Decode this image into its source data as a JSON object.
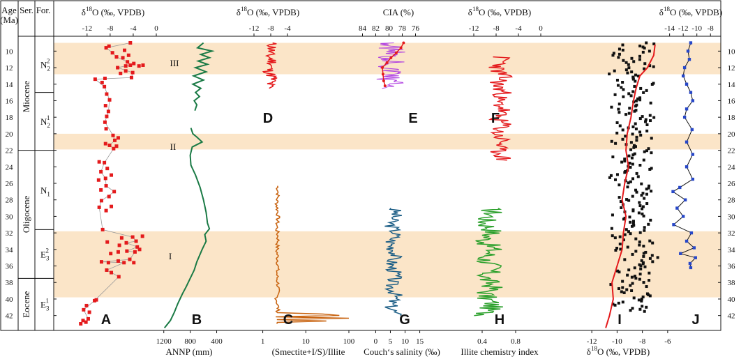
{
  "header": {
    "age_label": "Age",
    "age_unit": "(Ma)",
    "series_label": "Ser.",
    "formation_label": "For."
  },
  "stratigraphy": {
    "series": [
      "Miocene",
      "Oligocene",
      "Eocene"
    ],
    "formations": [
      {
        "base": "N",
        "sub": "2",
        "sup": "2"
      },
      {
        "base": "N",
        "sub": "2",
        "sup": "1"
      },
      {
        "base": "N",
        "sub": "1",
        "sup": ""
      },
      {
        "base": "E",
        "sub": "3",
        "sup": "2"
      },
      {
        "base": "E",
        "sub": "3",
        "sup": "1"
      }
    ]
  },
  "bands": [
    {
      "label": "III",
      "from": 9.0,
      "to": 12.8
    },
    {
      "label": "II",
      "from": 20.0,
      "to": 21.9
    },
    {
      "label": "I",
      "from": 31.8,
      "to": 39.8
    }
  ],
  "colors": {
    "band": "#fbe5c8",
    "red": "#e41a1c",
    "green_dark": "#1a7a45",
    "brown": "#c8620e",
    "violet": "#b040e0",
    "teal": "#1c5e86",
    "green": "#2ca02c",
    "blue": "#2747c8",
    "black": "#111111"
  },
  "chart_data": [
    {
      "panel": "A",
      "type": "scatter",
      "xlabel_top": "δ18O (‰, VPDB)",
      "top_ticks": [
        "-12",
        "-8",
        "-4",
        "0"
      ],
      "top_tick_values": [
        -12,
        -8,
        -4,
        0
      ],
      "xlim": [
        -15,
        0
      ],
      "points": [
        [
          -13.1,
          43
        ],
        [
          -12.7,
          42.6
        ],
        [
          -12.2,
          42.8
        ],
        [
          -11.8,
          42.4
        ],
        [
          -12.6,
          41.3
        ],
        [
          -11.6,
          41.6
        ],
        [
          -12.1,
          40.8
        ],
        [
          -10.4,
          40.1
        ],
        [
          -10.7,
          40.2
        ],
        [
          -6.5,
          37.3
        ],
        [
          -7.8,
          36.8
        ],
        [
          -8.6,
          36.5
        ],
        [
          -9.5,
          35.5
        ],
        [
          -8.3,
          35.6
        ],
        [
          -6.6,
          35.4
        ],
        [
          -5.6,
          35.6
        ],
        [
          -4.6,
          35.2
        ],
        [
          -3.9,
          35.6
        ],
        [
          -7.9,
          34.5
        ],
        [
          -6.6,
          34.3
        ],
        [
          -5.1,
          34.2
        ],
        [
          -3.7,
          34.3
        ],
        [
          -2.9,
          34.0
        ],
        [
          -3.3,
          33.7
        ],
        [
          -6.4,
          33.5
        ],
        [
          -5.2,
          33.2
        ],
        [
          -8.5,
          33.1
        ],
        [
          -6.0,
          32.6
        ],
        [
          -4.1,
          32.5
        ],
        [
          -3.5,
          33.0
        ],
        [
          -2.4,
          32.4
        ],
        [
          -9.3,
          31.6
        ],
        [
          -8.7,
          29.3
        ],
        [
          -9.9,
          28.9
        ],
        [
          -7.8,
          28.8
        ],
        [
          -9.5,
          28.1
        ],
        [
          -8.2,
          27.6
        ],
        [
          -7.3,
          27.0
        ],
        [
          -9.6,
          26.8
        ],
        [
          -8.7,
          26.3
        ],
        [
          -10.0,
          25.6
        ],
        [
          -8.8,
          25.4
        ],
        [
          -7.8,
          25.0
        ],
        [
          -9.6,
          24.6
        ],
        [
          -8.5,
          24.2
        ],
        [
          -9.0,
          23.5
        ],
        [
          -9.9,
          23.4
        ],
        [
          -7.4,
          21.8
        ],
        [
          -6.9,
          21.5
        ],
        [
          -8.1,
          21.4
        ],
        [
          -8.8,
          21.2
        ],
        [
          -7.2,
          20.8
        ],
        [
          -6.6,
          20.5
        ],
        [
          -7.5,
          20.2
        ],
        [
          -8.7,
          19.4
        ],
        [
          -8.9,
          18.6
        ],
        [
          -8.6,
          17.9
        ],
        [
          -8.3,
          17.3
        ],
        [
          -8.8,
          16.6
        ],
        [
          -8.1,
          15.9
        ],
        [
          -8.6,
          15.2
        ],
        [
          -9.0,
          14.3
        ],
        [
          -9.4,
          13.8
        ],
        [
          -8.9,
          13.3
        ],
        [
          -10.6,
          13.4
        ],
        [
          -4.3,
          13.2
        ],
        [
          -6.2,
          12.7
        ],
        [
          -5.3,
          12.4
        ],
        [
          -4.1,
          12.6
        ],
        [
          -6.7,
          12.0
        ],
        [
          -5.3,
          11.8
        ],
        [
          -4.5,
          11.7
        ],
        [
          -3.9,
          11.5
        ],
        [
          -3.0,
          11.8
        ],
        [
          -2.3,
          11.7
        ],
        [
          -5.0,
          11.3
        ],
        [
          -5.8,
          10.8
        ],
        [
          -4.8,
          10.5
        ],
        [
          -6.9,
          10.7
        ],
        [
          -7.6,
          10.2
        ],
        [
          -5.5,
          9.9
        ],
        [
          -8.7,
          9.6
        ],
        [
          -8.2,
          9.4
        ],
        [
          -4.5,
          9.0
        ]
      ],
      "trend_color": "#9a9a9a"
    },
    {
      "panel": "B",
      "type": "line",
      "xlabel": "ANNP (mm)",
      "bottom_ticks": [
        "1200",
        "800",
        "400"
      ],
      "bottom_tick_values": [
        1200,
        800,
        400
      ],
      "xlim": [
        1250,
        300
      ],
      "segments": [
        [
          [
            600,
            9.0
          ],
          [
            690,
            9.6
          ],
          [
            470,
            10.0
          ],
          [
            640,
            10.4
          ],
          [
            510,
            10.8
          ],
          [
            680,
            11.2
          ],
          [
            540,
            11.6
          ],
          [
            720,
            12.0
          ],
          [
            560,
            12.5
          ],
          [
            750,
            13.0
          ],
          [
            600,
            13.5
          ],
          [
            760,
            14.0
          ],
          [
            640,
            14.5
          ],
          [
            720,
            15.0
          ],
          [
            660,
            15.5
          ],
          [
            740,
            16.0
          ],
          [
            700,
            16.5
          ],
          [
            730,
            17.2
          ]
        ],
        [
          [
            790,
            19.3
          ],
          [
            760,
            20.0
          ],
          [
            700,
            20.4
          ],
          [
            620,
            21.0
          ],
          [
            770,
            21.6
          ],
          [
            800,
            22.6
          ],
          [
            790,
            23.8
          ],
          [
            720,
            25.0
          ],
          [
            650,
            26.5
          ],
          [
            600,
            28.0
          ],
          [
            560,
            29.5
          ],
          [
            540,
            30.8
          ],
          [
            510,
            31.5
          ],
          [
            580,
            32.2
          ],
          [
            560,
            33.0
          ],
          [
            620,
            34.0
          ],
          [
            700,
            35.5
          ],
          [
            740,
            36.5
          ],
          [
            800,
            37.5
          ],
          [
            860,
            38.5
          ],
          [
            920,
            39.4
          ],
          [
            990,
            40.6
          ],
          [
            1040,
            41.6
          ],
          [
            1100,
            42.6
          ],
          [
            1190,
            43.5
          ]
        ]
      ]
    },
    {
      "panel": "C",
      "type": "line",
      "xlabel": "(Smectite+I/S)/Illite",
      "xscale": "log",
      "bottom_ticks": [
        "1",
        "10",
        "100"
      ],
      "bottom_tick_values": [
        1,
        10,
        100
      ],
      "xlim": [
        0.5,
        100
      ],
      "ystart": 26.3,
      "yend": 43.0,
      "count": 100,
      "seed": 7,
      "base": 2.2,
      "amp": 0.45,
      "spikes": [
        [
          42.0,
          60
        ],
        [
          42.3,
          100
        ],
        [
          41.9,
          25
        ],
        [
          42.6,
          30
        ]
      ]
    },
    {
      "panel": "D",
      "type": "line",
      "xlabel_top": "δ18O (‰, VPDB)",
      "top_ticks": [
        "-12",
        "-8",
        "-4"
      ],
      "top_tick_values": [
        -12,
        -8,
        -4
      ],
      "xlim": [
        -14,
        -2
      ],
      "ystart": 9.0,
      "yend": 14.5,
      "count": 50,
      "seed": 11,
      "base": -8.0,
      "amp": 3.0
    },
    {
      "panel": "E",
      "type": "line",
      "xlabel_top": "CIA (%)",
      "top_ticks": [
        "84",
        "82",
        "80",
        "78",
        "76"
      ],
      "top_tick_values": [
        84,
        82,
        80,
        78,
        76
      ],
      "xlim": [
        85,
        75
      ],
      "ystart": 9.0,
      "yend": 14.5,
      "count": 70,
      "seed": 5,
      "base": 79.6,
      "amp": 3.8,
      "trend": [
        [
          77.8,
          9.0
        ],
        [
          78.2,
          9.6
        ],
        [
          78.9,
          10.2
        ],
        [
          79.7,
          10.8
        ],
        [
          80.3,
          11.4
        ],
        [
          81.0,
          12.0
        ],
        [
          80.9,
          12.8
        ],
        [
          80.8,
          13.6
        ],
        [
          80.6,
          14.2
        ]
      ]
    },
    {
      "panel": "F",
      "type": "line",
      "xlabel_top": "δ18O (‰, VPDB)",
      "top_ticks": [
        "-12",
        "-8",
        "-4",
        "0"
      ],
      "top_tick_values": [
        -12,
        -8,
        -4,
        0
      ],
      "xlim": [
        -15,
        0
      ],
      "ystart": 10.7,
      "yend": 23.2,
      "count": 110,
      "seed": 23,
      "base": -7.3,
      "amp": 3.4
    },
    {
      "panel": "G",
      "type": "line",
      "xlabel": "Couch‘s salinity (‰)",
      "bottom_ticks": [
        "0",
        "5",
        "10",
        "15"
      ],
      "bottom_tick_values": [
        0,
        5,
        10,
        15
      ],
      "xlim": [
        -2,
        17
      ],
      "ystart": 29.0,
      "yend": 42.0,
      "count": 90,
      "seed": 3,
      "base": 6.0,
      "amp": 5.0
    },
    {
      "panel": "H",
      "type": "line",
      "xlabel": "Illite chemistry index",
      "bottom_ticks": [
        "0.4",
        "0.8"
      ],
      "bottom_tick_values": [
        0.4,
        0.8
      ],
      "xlim": [
        0.1,
        1.1
      ],
      "ystart": 29.0,
      "yend": 42.0,
      "count": 100,
      "seed": 17,
      "base": 0.48,
      "amp": 0.28
    },
    {
      "panel": "I",
      "type": "scatter",
      "xlabel": "δ18O (‰, VPDB)",
      "bottom_ticks": [
        "-12",
        "-10",
        "-8",
        "-6"
      ],
      "bottom_tick_values": [
        -12,
        -10,
        -8,
        -6
      ],
      "xlim": [
        -13,
        -5
      ],
      "ystart": 9.0,
      "yend": 41.5,
      "count": 260,
      "seed": 41,
      "base": -8.8,
      "amp": 3.2,
      "trend": [
        [
          -7.0,
          9.2
        ],
        [
          -7.1,
          10.5
        ],
        [
          -7.6,
          12.0
        ],
        [
          -8.2,
          13.0
        ],
        [
          -8.5,
          14.5
        ],
        [
          -8.7,
          16.0
        ],
        [
          -8.9,
          18.0
        ],
        [
          -9.2,
          20.0
        ],
        [
          -9.3,
          22.0
        ],
        [
          -9.1,
          24.0
        ],
        [
          -9.4,
          26.0
        ],
        [
          -9.6,
          28.0
        ],
        [
          -9.3,
          30.0
        ],
        [
          -9.5,
          32.0
        ],
        [
          -9.6,
          34.0
        ],
        [
          -10.0,
          36.0
        ],
        [
          -10.4,
          38.0
        ],
        [
          -10.3,
          40.0
        ],
        [
          -10.6,
          42.0
        ],
        [
          -10.9,
          43.5
        ]
      ]
    },
    {
      "panel": "J",
      "type": "line",
      "xlabel_top": "δ18O (‰, VPDB)",
      "top_ticks": [
        "-14",
        "-12",
        "-10",
        "-8"
      ],
      "top_tick_values": [
        -14,
        -12,
        -10,
        -8
      ],
      "xlim": [
        -15.5,
        -7
      ],
      "points": [
        [
          -10.9,
          9.0
        ],
        [
          -11.3,
          10.0
        ],
        [
          -11.1,
          11.0
        ],
        [
          -11.8,
          12.0
        ],
        [
          -12.0,
          13.0
        ],
        [
          -11.5,
          14.0
        ],
        [
          -10.9,
          15.0
        ],
        [
          -10.6,
          16.0
        ],
        [
          -11.5,
          17.0
        ],
        [
          -11.8,
          18.0
        ],
        [
          -10.7,
          19.5
        ],
        [
          -11.5,
          21.0
        ],
        [
          -10.6,
          22.5
        ],
        [
          -11.5,
          24.0
        ],
        [
          -10.6,
          25.5
        ],
        [
          -12.5,
          26.5
        ],
        [
          -13.5,
          27.0
        ],
        [
          -11.7,
          28.0
        ],
        [
          -12.9,
          29.0
        ],
        [
          -12.0,
          30.0
        ],
        [
          -13.4,
          31.0
        ],
        [
          -10.8,
          32.0
        ],
        [
          -11.5,
          33.0
        ],
        [
          -10.4,
          33.8
        ],
        [
          -12.4,
          34.5
        ],
        [
          -10.2,
          35.0
        ],
        [
          -11.0,
          35.7
        ],
        [
          -10.9,
          36.2
        ]
      ]
    }
  ],
  "y_axis": {
    "ylim": [
      8.2,
      43.8
    ],
    "ticks": [
      "10",
      "12",
      "14",
      "16",
      "18",
      "20",
      "22",
      "24",
      "26",
      "28",
      "30",
      "32",
      "34",
      "36",
      "38",
      "40",
      "42"
    ]
  }
}
